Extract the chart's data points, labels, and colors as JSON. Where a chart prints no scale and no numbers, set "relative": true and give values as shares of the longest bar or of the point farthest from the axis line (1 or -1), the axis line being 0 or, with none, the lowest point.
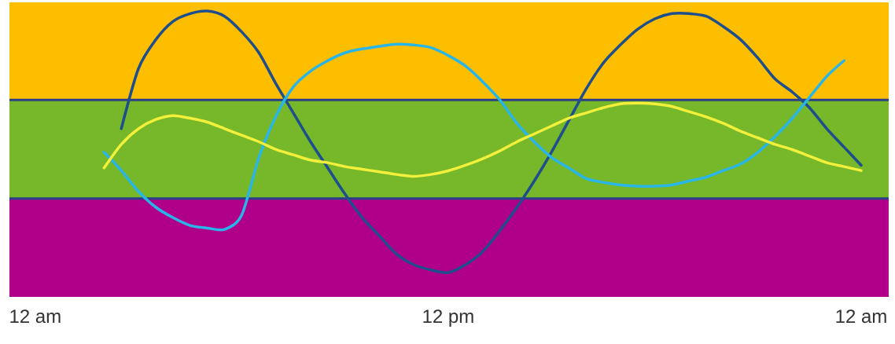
{
  "chart_data": {
    "type": "line",
    "relative": true,
    "categories": [
      "12 am",
      null,
      null,
      null,
      null,
      null,
      null,
      null,
      null,
      null,
      null,
      null,
      null,
      null,
      null,
      null,
      null,
      null,
      null,
      null,
      null,
      null,
      null,
      null,
      "12 pm",
      null,
      null,
      null,
      null,
      null,
      null,
      null,
      null,
      null,
      null,
      null,
      null,
      null,
      null,
      null,
      null,
      null,
      null,
      null,
      null,
      null,
      null,
      null,
      "12 am"
    ],
    "bands": [
      {
        "axis": "y",
        "from": -0.093,
        "to": 0.283,
        "color": "#b0008a"
      },
      {
        "axis": "y",
        "from": 0.283,
        "to": 0.66,
        "color": "#76b82a"
      },
      {
        "axis": "y",
        "from": 0.66,
        "to": 1.033,
        "color": "#fdbe00"
      }
    ],
    "ref_lines": [
      {
        "axis": "y",
        "value": 0.283,
        "color": "#2a3f85"
      },
      {
        "axis": "y",
        "value": 0.66,
        "color": "#2a3f85"
      }
    ],
    "series": [
      {
        "color": "#1f4e8c",
        "values": [
          null,
          null,
          null,
          null,
          null,
          0.55,
          0.78,
          0.89,
          0.96,
          0.99,
          1.0,
          0.98,
          0.92,
          0.84,
          0.72,
          0.61,
          0.5,
          0.4,
          0.3,
          0.21,
          0.14,
          0.07,
          0.03,
          0.01,
          0,
          0.03,
          0.08,
          0.16,
          0.25,
          0.35,
          0.46,
          0.58,
          0.7,
          0.8,
          0.87,
          0.93,
          0.97,
          0.99,
          0.99,
          0.98,
          0.94,
          0.89,
          0.82,
          0.74,
          0.69,
          0.63,
          0.55,
          0.48,
          0.41
        ]
      },
      {
        "color": "#29b5e8",
        "values": [
          null,
          null,
          null,
          null,
          0.46,
          0.39,
          0.31,
          0.25,
          0.21,
          0.18,
          0.17,
          0.165,
          0.22,
          0.44,
          0.6,
          0.71,
          0.77,
          0.81,
          0.84,
          0.855,
          0.865,
          0.873,
          0.87,
          0.86,
          0.83,
          0.79,
          0.73,
          0.66,
          0.57,
          0.5,
          0.44,
          0.4,
          0.36,
          0.345,
          0.335,
          0.33,
          0.33,
          0.335,
          0.35,
          0.365,
          0.39,
          0.415,
          0.46,
          0.52,
          0.59,
          0.67,
          0.75,
          0.81,
          null
        ]
      },
      {
        "color": "#f2f03a",
        "values": [
          null,
          null,
          null,
          null,
          0.4,
          0.49,
          0.55,
          0.585,
          0.6,
          0.59,
          0.575,
          0.55,
          0.525,
          0.5,
          0.47,
          0.45,
          0.43,
          0.42,
          0.405,
          0.395,
          0.385,
          0.375,
          0.368,
          0.375,
          0.389,
          0.41,
          0.435,
          0.465,
          0.5,
          0.53,
          0.56,
          0.59,
          0.61,
          0.63,
          0.645,
          0.648,
          0.645,
          0.635,
          0.615,
          0.595,
          0.57,
          0.54,
          0.515,
          0.49,
          0.47,
          0.445,
          0.42,
          0.405,
          0.39
        ]
      }
    ]
  }
}
